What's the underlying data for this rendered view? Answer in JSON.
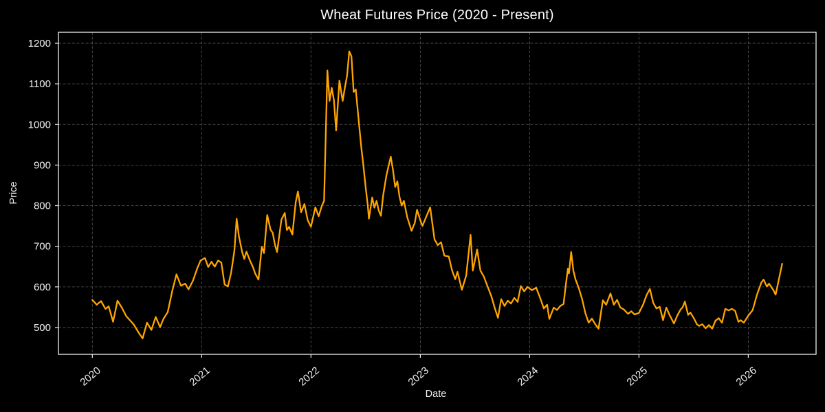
{
  "title": "Wheat Futures Price (2020 - Present)",
  "chart_data": {
    "type": "line",
    "title": "Wheat Futures Price (2020 - Present)",
    "xlabel": "Date",
    "ylabel": "Price",
    "x_ticks": [
      2020,
      2021,
      2022,
      2023,
      2024,
      2025,
      2026
    ],
    "y_ticks": [
      500,
      600,
      700,
      800,
      900,
      1000,
      1100,
      1200
    ],
    "xlim": [
      2019.69,
      2026.62
    ],
    "ylim": [
      434,
      1227
    ],
    "grid": true,
    "grid_style": "dashed",
    "legend": false,
    "colors": {
      "line": "#FFA500",
      "background": "#000000",
      "grid": "#4d4d4d",
      "spine": "#efefef",
      "text": "#f0f0f0",
      "title": "#ffffff"
    },
    "series": [
      {
        "name": "Wheat Futures Price",
        "points": [
          [
            2020.0,
            568
          ],
          [
            2020.04,
            556
          ],
          [
            2020.08,
            565
          ],
          [
            2020.12,
            546
          ],
          [
            2020.15,
            552
          ],
          [
            2020.19,
            514
          ],
          [
            2020.23,
            566
          ],
          [
            2020.27,
            549
          ],
          [
            2020.31,
            528
          ],
          [
            2020.35,
            516
          ],
          [
            2020.38,
            507
          ],
          [
            2020.42,
            489
          ],
          [
            2020.46,
            473
          ],
          [
            2020.5,
            512
          ],
          [
            2020.54,
            494
          ],
          [
            2020.58,
            526
          ],
          [
            2020.62,
            501
          ],
          [
            2020.65,
            521
          ],
          [
            2020.69,
            538
          ],
          [
            2020.73,
            589
          ],
          [
            2020.77,
            631
          ],
          [
            2020.81,
            603
          ],
          [
            2020.85,
            608
          ],
          [
            2020.88,
            594
          ],
          [
            2020.92,
            615
          ],
          [
            2020.96,
            646
          ],
          [
            2020.99,
            665
          ],
          [
            2021.03,
            671
          ],
          [
            2021.06,
            649
          ],
          [
            2021.09,
            662
          ],
          [
            2021.12,
            650
          ],
          [
            2021.15,
            665
          ],
          [
            2021.18,
            660
          ],
          [
            2021.21,
            606
          ],
          [
            2021.24,
            601
          ],
          [
            2021.27,
            635
          ],
          [
            2021.3,
            690
          ],
          [
            2021.32,
            768
          ],
          [
            2021.34,
            726
          ],
          [
            2021.37,
            686
          ],
          [
            2021.39,
            669
          ],
          [
            2021.41,
            687
          ],
          [
            2021.44,
            666
          ],
          [
            2021.47,
            648
          ],
          [
            2021.49,
            633
          ],
          [
            2021.52,
            618
          ],
          [
            2021.55,
            699
          ],
          [
            2021.57,
            683
          ],
          [
            2021.6,
            777
          ],
          [
            2021.63,
            741
          ],
          [
            2021.65,
            733
          ],
          [
            2021.67,
            704
          ],
          [
            2021.69,
            686
          ],
          [
            2021.73,
            766
          ],
          [
            2021.76,
            782
          ],
          [
            2021.78,
            740
          ],
          [
            2021.8,
            748
          ],
          [
            2021.83,
            729
          ],
          [
            2021.86,
            808
          ],
          [
            2021.88,
            835
          ],
          [
            2021.91,
            784
          ],
          [
            2021.94,
            804
          ],
          [
            2021.97,
            764
          ],
          [
            2022.0,
            748
          ],
          [
            2022.04,
            796
          ],
          [
            2022.07,
            774
          ],
          [
            2022.1,
            800
          ],
          [
            2022.12,
            812
          ],
          [
            2022.15,
            1133
          ],
          [
            2022.17,
            1058
          ],
          [
            2022.19,
            1090
          ],
          [
            2022.21,
            1060
          ],
          [
            2022.23,
            985
          ],
          [
            2022.26,
            1108
          ],
          [
            2022.29,
            1058
          ],
          [
            2022.31,
            1090
          ],
          [
            2022.33,
            1120
          ],
          [
            2022.35,
            1180
          ],
          [
            2022.37,
            1168
          ],
          [
            2022.39,
            1080
          ],
          [
            2022.41,
            1086
          ],
          [
            2022.44,
            1000
          ],
          [
            2022.46,
            944
          ],
          [
            2022.48,
            897
          ],
          [
            2022.5,
            846
          ],
          [
            2022.52,
            800
          ],
          [
            2022.53,
            768
          ],
          [
            2022.56,
            820
          ],
          [
            2022.58,
            795
          ],
          [
            2022.6,
            812
          ],
          [
            2022.62,
            788
          ],
          [
            2022.64,
            775
          ],
          [
            2022.66,
            825
          ],
          [
            2022.69,
            875
          ],
          [
            2022.73,
            921
          ],
          [
            2022.75,
            888
          ],
          [
            2022.77,
            846
          ],
          [
            2022.79,
            860
          ],
          [
            2022.81,
            822
          ],
          [
            2022.83,
            800
          ],
          [
            2022.85,
            812
          ],
          [
            2022.88,
            772
          ],
          [
            2022.92,
            738
          ],
          [
            2022.95,
            758
          ],
          [
            2022.97,
            790
          ],
          [
            2023.0,
            764
          ],
          [
            2023.02,
            750
          ],
          [
            2023.05,
            770
          ],
          [
            2023.09,
            796
          ],
          [
            2023.13,
            717
          ],
          [
            2023.16,
            703
          ],
          [
            2023.19,
            710
          ],
          [
            2023.22,
            677
          ],
          [
            2023.26,
            675
          ],
          [
            2023.29,
            641
          ],
          [
            2023.32,
            619
          ],
          [
            2023.34,
            637
          ],
          [
            2023.38,
            593
          ],
          [
            2023.42,
            628
          ],
          [
            2023.46,
            728
          ],
          [
            2023.48,
            640
          ],
          [
            2023.52,
            692
          ],
          [
            2023.55,
            640
          ],
          [
            2023.58,
            626
          ],
          [
            2023.62,
            598
          ],
          [
            2023.65,
            577
          ],
          [
            2023.68,
            549
          ],
          [
            2023.71,
            524
          ],
          [
            2023.74,
            570
          ],
          [
            2023.77,
            553
          ],
          [
            2023.8,
            566
          ],
          [
            2023.83,
            559
          ],
          [
            2023.86,
            573
          ],
          [
            2023.89,
            563
          ],
          [
            2023.92,
            602
          ],
          [
            2023.95,
            589
          ],
          [
            2023.98,
            600
          ],
          [
            2024.02,
            592
          ],
          [
            2024.06,
            598
          ],
          [
            2024.1,
            570
          ],
          [
            2024.13,
            547
          ],
          [
            2024.16,
            556
          ],
          [
            2024.18,
            521
          ],
          [
            2024.22,
            549
          ],
          [
            2024.25,
            543
          ],
          [
            2024.28,
            553
          ],
          [
            2024.31,
            558
          ],
          [
            2024.33,
            602
          ],
          [
            2024.35,
            645
          ],
          [
            2024.36,
            633
          ],
          [
            2024.38,
            686
          ],
          [
            2024.4,
            640
          ],
          [
            2024.42,
            618
          ],
          [
            2024.45,
            597
          ],
          [
            2024.48,
            570
          ],
          [
            2024.51,
            535
          ],
          [
            2024.54,
            512
          ],
          [
            2024.57,
            522
          ],
          [
            2024.6,
            508
          ],
          [
            2024.63,
            497
          ],
          [
            2024.67,
            567
          ],
          [
            2024.7,
            556
          ],
          [
            2024.74,
            584
          ],
          [
            2024.77,
            556
          ],
          [
            2024.8,
            568
          ],
          [
            2024.83,
            549
          ],
          [
            2024.86,
            545
          ],
          [
            2024.9,
            534
          ],
          [
            2024.93,
            540
          ],
          [
            2024.96,
            532
          ],
          [
            2025.0,
            536
          ],
          [
            2025.04,
            558
          ],
          [
            2025.07,
            580
          ],
          [
            2025.1,
            595
          ],
          [
            2025.13,
            561
          ],
          [
            2025.16,
            547
          ],
          [
            2025.19,
            551
          ],
          [
            2025.22,
            518
          ],
          [
            2025.25,
            549
          ],
          [
            2025.28,
            531
          ],
          [
            2025.32,
            510
          ],
          [
            2025.35,
            529
          ],
          [
            2025.38,
            544
          ],
          [
            2025.4,
            550
          ],
          [
            2025.42,
            564
          ],
          [
            2025.45,
            531
          ],
          [
            2025.47,
            537
          ],
          [
            2025.5,
            524
          ],
          [
            2025.53,
            508
          ],
          [
            2025.55,
            504
          ],
          [
            2025.58,
            508
          ],
          [
            2025.61,
            498
          ],
          [
            2025.64,
            506
          ],
          [
            2025.67,
            497
          ],
          [
            2025.7,
            517
          ],
          [
            2025.73,
            523
          ],
          [
            2025.76,
            512
          ],
          [
            2025.79,
            546
          ],
          [
            2025.82,
            542
          ],
          [
            2025.85,
            546
          ],
          [
            2025.88,
            541
          ],
          [
            2025.91,
            514
          ],
          [
            2025.93,
            518
          ],
          [
            2025.96,
            512
          ],
          [
            2026.0,
            529
          ],
          [
            2026.04,
            543
          ],
          [
            2026.08,
            581
          ],
          [
            2026.12,
            611
          ],
          [
            2026.14,
            618
          ],
          [
            2026.17,
            601
          ],
          [
            2026.19,
            608
          ],
          [
            2026.23,
            592
          ],
          [
            2026.25,
            581
          ],
          [
            2026.31,
            657
          ]
        ]
      }
    ]
  }
}
